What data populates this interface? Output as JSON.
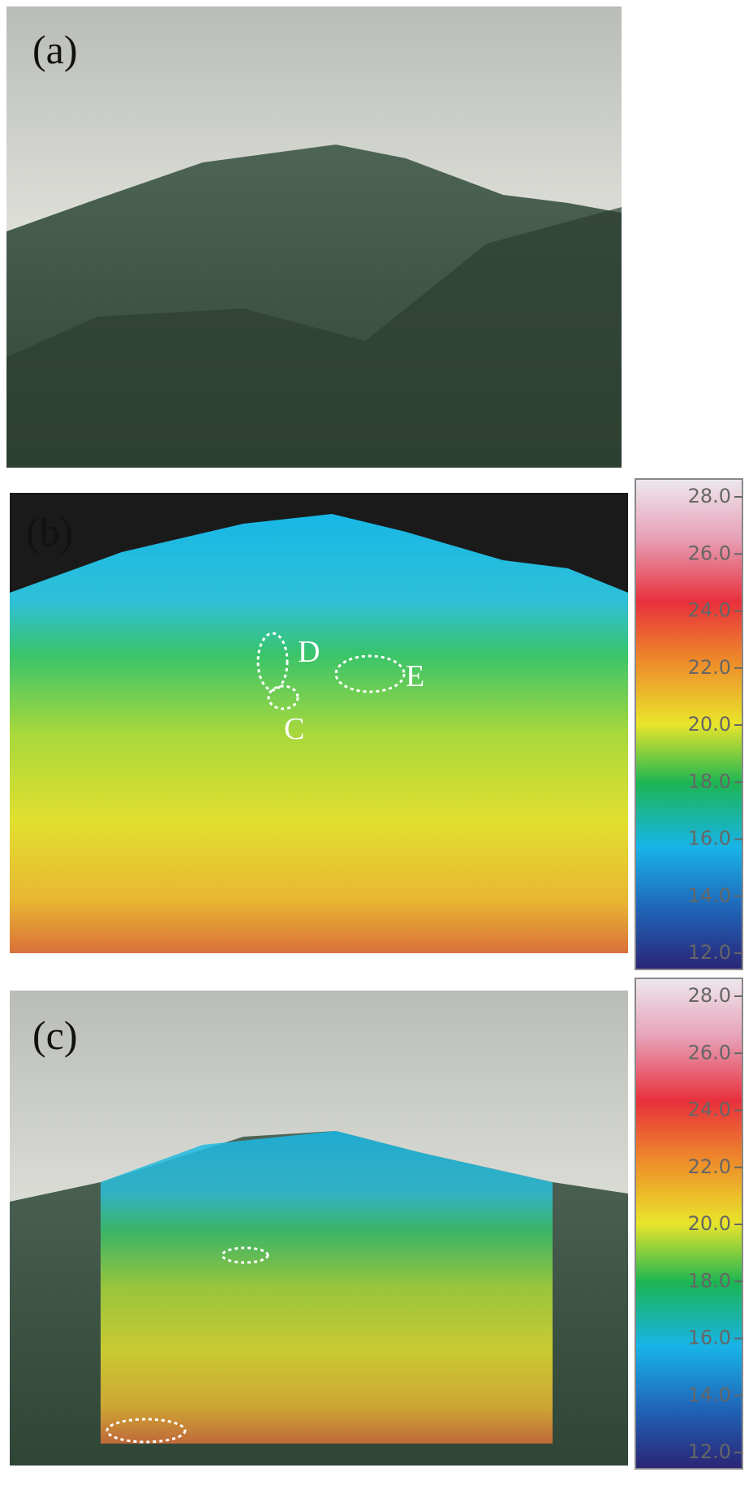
{
  "panels": [
    {
      "label": "(a)"
    },
    {
      "label": "(b)",
      "annotations": [
        "D",
        "C",
        "E"
      ]
    },
    {
      "label": "(c)"
    }
  ],
  "colorbars": [
    {
      "ticks": [
        {
          "value": 28,
          "label": "28.0"
        },
        {
          "value": 26,
          "label": "26.0"
        },
        {
          "value": 24,
          "label": "24.0"
        },
        {
          "value": 22,
          "label": "22.0"
        },
        {
          "value": 20,
          "label": "20.0"
        },
        {
          "value": 18,
          "label": "18.0"
        },
        {
          "value": 16,
          "label": "16.0"
        },
        {
          "value": 14,
          "label": "14.0"
        },
        {
          "value": 12,
          "label": "12.0"
        }
      ]
    },
    {
      "ticks": [
        {
          "value": 28,
          "label": "28.0"
        },
        {
          "value": 26,
          "label": "26.0"
        },
        {
          "value": 24,
          "label": "24.0"
        },
        {
          "value": 22,
          "label": "22.0"
        },
        {
          "value": 20,
          "label": "20.0"
        },
        {
          "value": 18,
          "label": "18.0"
        },
        {
          "value": 16,
          "label": "16.0"
        },
        {
          "value": 14,
          "label": "14.0"
        },
        {
          "value": 12,
          "label": "12.0"
        }
      ]
    }
  ]
}
